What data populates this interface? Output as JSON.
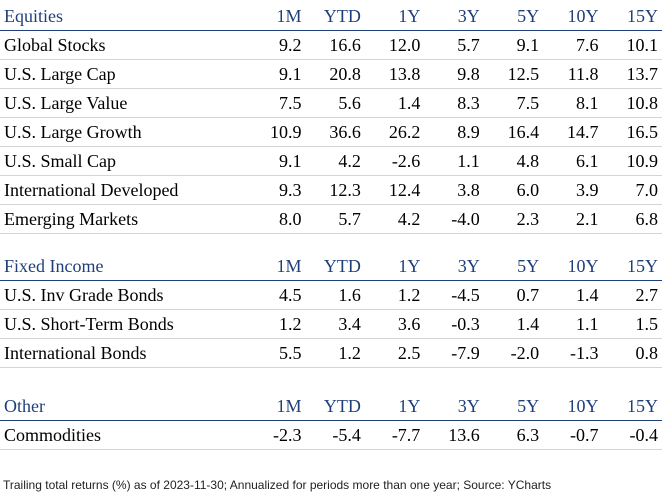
{
  "columns": [
    "1M",
    "YTD",
    "1Y",
    "3Y",
    "5Y",
    "10Y",
    "15Y"
  ],
  "equities": {
    "title": "Equities",
    "rows": [
      {
        "label": "Global Stocks",
        "values": [
          "9.2",
          "16.6",
          "12.0",
          "5.7",
          "9.1",
          "7.6",
          "10.1"
        ]
      },
      {
        "label": "U.S. Large Cap",
        "values": [
          "9.1",
          "20.8",
          "13.8",
          "9.8",
          "12.5",
          "11.8",
          "13.7"
        ]
      },
      {
        "label": "U.S. Large Value",
        "values": [
          "7.5",
          "5.6",
          "1.4",
          "8.3",
          "7.5",
          "8.1",
          "10.8"
        ]
      },
      {
        "label": "U.S. Large Growth",
        "values": [
          "10.9",
          "36.6",
          "26.2",
          "8.9",
          "16.4",
          "14.7",
          "16.5"
        ]
      },
      {
        "label": "U.S. Small Cap",
        "values": [
          "9.1",
          "4.2",
          "-2.6",
          "1.1",
          "4.8",
          "6.1",
          "10.9"
        ]
      },
      {
        "label": "International Developed",
        "values": [
          "9.3",
          "12.3",
          "12.4",
          "3.8",
          "6.0",
          "3.9",
          "7.0"
        ]
      },
      {
        "label": "Emerging Markets",
        "values": [
          "8.0",
          "5.7",
          "4.2",
          "-4.0",
          "2.3",
          "2.1",
          "6.8"
        ]
      }
    ]
  },
  "fixed_income": {
    "title": "Fixed Income",
    "rows": [
      {
        "label": "U.S. Inv Grade Bonds",
        "values": [
          "4.5",
          "1.6",
          "1.2",
          "-4.5",
          "0.7",
          "1.4",
          "2.7"
        ]
      },
      {
        "label": "U.S. Short-Term Bonds",
        "values": [
          "1.2",
          "3.4",
          "3.6",
          "-0.3",
          "1.4",
          "1.1",
          "1.5"
        ]
      },
      {
        "label": "International Bonds",
        "values": [
          "5.5",
          "1.2",
          "2.5",
          "-7.9",
          "-2.0",
          "-1.3",
          "0.8"
        ]
      }
    ]
  },
  "other": {
    "title": "Other",
    "rows": [
      {
        "label": "Commodities",
        "values": [
          "-2.3",
          "-5.4",
          "-7.7",
          "13.6",
          "6.3",
          "-0.7",
          "-0.4"
        ]
      }
    ]
  },
  "footnote": "Trailing total returns (%) as of 2023-11-30; Annualized for periods more than one year; Source: YCharts"
}
